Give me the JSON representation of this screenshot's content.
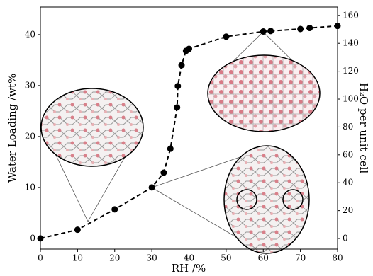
{
  "chart_data": {
    "type": "line",
    "x_label": "RH /%",
    "y_label": "Water Loading /wt%",
    "y2_label": "H₂O per unit cell",
    "x": [
      0,
      10,
      20,
      30,
      33.2,
      35,
      36.8,
      37,
      38,
      39.2,
      40,
      50,
      60,
      62,
      70,
      72.5,
      80
    ],
    "series": [
      {
        "color": "#000000",
        "values": [
          0,
          1.7,
          5.7,
          10,
          12.9,
          17.6,
          25.7,
          29.9,
          34,
          36.8,
          37.2,
          39.6,
          40.6,
          40.7,
          41.1,
          41.3,
          41.7
        ]
      }
    ],
    "xlim": [
      0,
      80
    ],
    "xticks": [
      0,
      10,
      20,
      30,
      40,
      50,
      60,
      70,
      80
    ],
    "ylim": [
      -2.1,
      45.4
    ],
    "yticks": [
      0,
      10,
      20,
      30,
      40
    ],
    "y2lim": [
      -7.6,
      166
    ],
    "y2ticks": [
      0,
      20,
      40,
      60,
      80,
      100,
      120,
      140,
      160
    ],
    "line_style": "dashed"
  }
}
